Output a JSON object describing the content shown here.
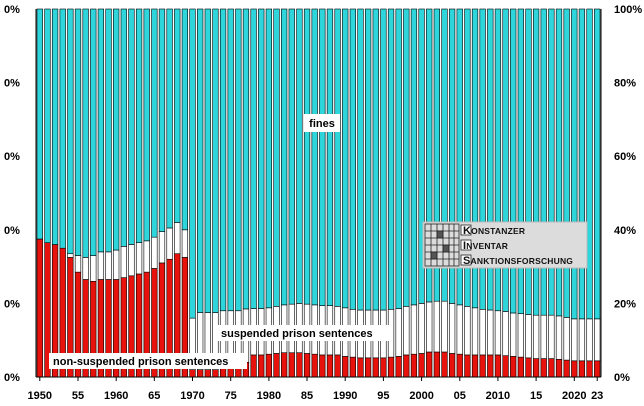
{
  "chart_data": {
    "type": "bar",
    "stacked": true,
    "percent_stacked": true,
    "title": "",
    "xlabel": "",
    "ylabel": "",
    "ylim": [
      0,
      100
    ],
    "y_ticks_left": [
      "0%",
      "0%",
      "0%",
      "0%",
      "0%",
      "0%"
    ],
    "y_ticks_right": [
      "0%",
      "20%",
      "40%",
      "60%",
      "80%",
      "100%"
    ],
    "y_tick_values": [
      0,
      20,
      40,
      60,
      80,
      100
    ],
    "x_tick_labels": [
      {
        "year": 1950,
        "label": "1950"
      },
      {
        "year": 1955,
        "label": "55"
      },
      {
        "year": 1960,
        "label": "1960"
      },
      {
        "year": 1965,
        "label": "65"
      },
      {
        "year": 1970,
        "label": "1970"
      },
      {
        "year": 1975,
        "label": "75"
      },
      {
        "year": 1980,
        "label": "1980"
      },
      {
        "year": 1985,
        "label": "85"
      },
      {
        "year": 1990,
        "label": "1990"
      },
      {
        "year": 1995,
        "label": "95"
      },
      {
        "year": 2000,
        "label": "2000"
      },
      {
        "year": 2005,
        "label": "05"
      },
      {
        "year": 2010,
        "label": "2010"
      },
      {
        "year": 2015,
        "label": "15"
      },
      {
        "year": 2020,
        "label": "2020"
      },
      {
        "year": 2023,
        "label": "23"
      }
    ],
    "grid": false,
    "legend": "none",
    "x": [
      1950,
      1951,
      1952,
      1953,
      1954,
      1955,
      1956,
      1957,
      1958,
      1959,
      1960,
      1961,
      1962,
      1963,
      1964,
      1965,
      1966,
      1967,
      1968,
      1969,
      1970,
      1971,
      1972,
      1973,
      1974,
      1975,
      1976,
      1977,
      1978,
      1979,
      1980,
      1981,
      1982,
      1983,
      1984,
      1985,
      1986,
      1987,
      1988,
      1989,
      1990,
      1991,
      1992,
      1993,
      1994,
      1995,
      1996,
      1997,
      1998,
      1999,
      2000,
      2001,
      2002,
      2003,
      2004,
      2005,
      2006,
      2007,
      2008,
      2009,
      2010,
      2011,
      2012,
      2013,
      2014,
      2015,
      2016,
      2017,
      2018,
      2019,
      2020,
      2021,
      2022,
      2023
    ],
    "series": [
      {
        "name": "non-suspended prison sentences",
        "label": "non-suspended prison sentences",
        "color": "#e8120c",
        "values": [
          37.5,
          36.5,
          36,
          35,
          32.5,
          28.5,
          26.5,
          26,
          26.5,
          26.5,
          26.5,
          27,
          27.5,
          28,
          28.5,
          29.5,
          31,
          32,
          33.5,
          32.5,
          2,
          2,
          2,
          2,
          2.5,
          2.5,
          2.5,
          4,
          6,
          6,
          6.2,
          6.4,
          6.6,
          6.6,
          6.6,
          6.4,
          6.2,
          6,
          6,
          6,
          5.6,
          5.4,
          5.2,
          5.2,
          5.2,
          5.2,
          5.4,
          5.6,
          6,
          6.2,
          6.4,
          6.8,
          6.8,
          6.8,
          6.4,
          6.2,
          6,
          6,
          6,
          6,
          6,
          5.8,
          5.6,
          5.4,
          5.2,
          5,
          5,
          5,
          4.8,
          4.6,
          4.4,
          4.4,
          4.4,
          4.4
        ]
      },
      {
        "name": "suspended prison sentences",
        "label": "suspended prison sentences",
        "color": "#ffffff",
        "values": [
          0,
          0,
          0,
          0,
          1,
          4.5,
          6,
          7,
          7.5,
          7.5,
          8,
          8.5,
          8.5,
          8.5,
          8.5,
          8.5,
          8.5,
          8.5,
          8.5,
          7.5,
          14,
          15.5,
          15.5,
          15.5,
          15.5,
          15.5,
          15.5,
          14.5,
          12.6,
          12.6,
          12.6,
          12.8,
          13,
          13.2,
          13.4,
          13.4,
          13.4,
          13.4,
          13.4,
          13.2,
          13.2,
          13,
          13,
          13,
          13,
          13,
          13,
          13,
          13.2,
          13.4,
          13.6,
          13.6,
          13.8,
          13.8,
          13.6,
          13.4,
          13.2,
          12.8,
          12.4,
          12.2,
          12,
          12,
          11.8,
          11.8,
          11.8,
          11.8,
          11.8,
          11.8,
          11.8,
          11.6,
          11.4,
          11.4,
          11.4,
          11.4
        ]
      },
      {
        "name": "fines",
        "label": "fines",
        "color": "#2ed6dc",
        "values": [
          62.5,
          63.5,
          64,
          65,
          66.5,
          67,
          67.5,
          67,
          66,
          66,
          65.5,
          64.5,
          64,
          63.5,
          63,
          62,
          60.5,
          59.5,
          58,
          60,
          84,
          82.5,
          82.5,
          82.5,
          82,
          82,
          82,
          81.5,
          81.4,
          81.4,
          81.2,
          80.8,
          80.4,
          80.2,
          80,
          80.2,
          80.4,
          80.6,
          80.6,
          80.8,
          81.2,
          81.6,
          81.8,
          81.8,
          81.8,
          81.8,
          81.6,
          81.4,
          80.8,
          80.4,
          80,
          79.6,
          79.4,
          79.4,
          80,
          80.4,
          80.8,
          81.2,
          81.6,
          81.8,
          82,
          82.2,
          82.6,
          82.8,
          83,
          83.2,
          83.2,
          83.2,
          83.4,
          83.8,
          84.2,
          84.2,
          84.2,
          84.2
        ]
      }
    ],
    "annotations": {
      "fines": "fines",
      "suspended": "suspended prison sentences",
      "non_suspended": "non-suspended prison sentences"
    },
    "logo": {
      "line1_initial": "K",
      "line1_rest": "ONSTANZER",
      "line2_initial": "I",
      "line2_rest": "NVENTAR",
      "line3_initial": "S",
      "line3_rest": "ANKTIONSFORSCHUNG"
    }
  }
}
